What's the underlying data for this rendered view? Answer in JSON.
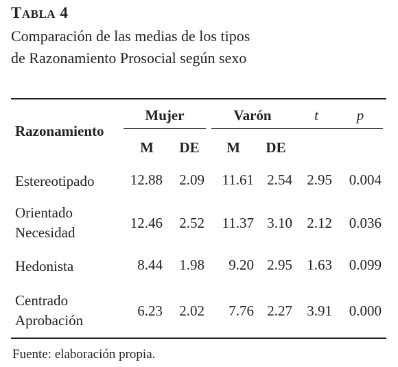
{
  "table": {
    "label_first": "T",
    "label_rest": "ABLA",
    "label_number": " 4",
    "caption_line1": "Comparación de las medias de los tipos",
    "caption_line2": "de Razonamiento Prosocial según sexo",
    "columns": {
      "row_header": "Razonamiento",
      "group_mujer": "Mujer",
      "group_varon": "Varón",
      "t": "t",
      "p": "p",
      "m1": "M",
      "de1": "DE",
      "m2": "M",
      "de2": "DE"
    },
    "rows": [
      {
        "label1": "Estereotipado",
        "label2": "",
        "m_mujer": "12.88",
        "de_mujer": "2.09",
        "m_varon": "11.61",
        "de_varon": "2.54",
        "t": "2.95",
        "p": "0.004"
      },
      {
        "label1": "Orientado",
        "label2": "Necesidad",
        "m_mujer": "12.46",
        "de_mujer": "2.52",
        "m_varon": "11.37",
        "de_varon": "3.10",
        "t": "2.12",
        "p": "0.036"
      },
      {
        "label1": "Hedonista",
        "label2": "",
        "m_mujer": "8.44",
        "de_mujer": "1.98",
        "m_varon": "9.20",
        "de_varon": "2.95",
        "t": "1.63",
        "p": "0.099"
      },
      {
        "label1": "Centrado",
        "label2": "Aprobación",
        "m_mujer": "6.23",
        "de_mujer": "2.02",
        "m_varon": "7.76",
        "de_varon": "2.27",
        "t": "3.91",
        "p": "0.000"
      }
    ],
    "source": "Fuente: elaboración propia."
  }
}
